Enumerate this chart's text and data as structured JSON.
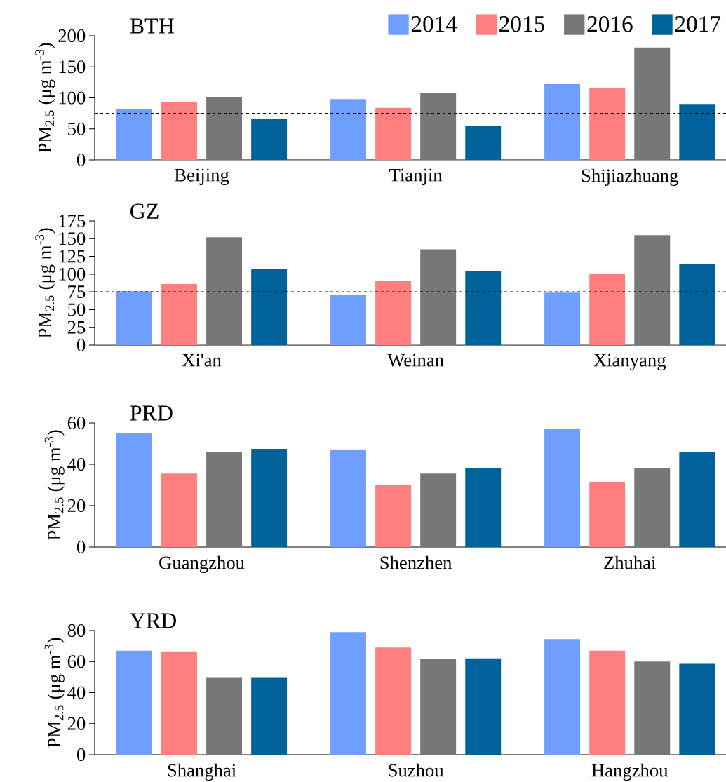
{
  "chart_data": [
    {
      "type": "bar",
      "title": "BTH",
      "ylabel": "PM$_{2.5}$ (μg m$^{-3}$)",
      "categories": [
        "Beijing",
        "Tianjin",
        "Shijiazhuang"
      ],
      "series": [
        {
          "name": "2014",
          "color": "#6f9eff",
          "values": [
            82,
            98,
            122
          ]
        },
        {
          "name": "2015",
          "color": "#ff7f7f",
          "values": [
            93,
            84,
            116
          ]
        },
        {
          "name": "2016",
          "color": "#777777",
          "values": [
            101,
            108,
            181
          ]
        },
        {
          "name": "2017",
          "color": "#00629b",
          "values": [
            66,
            55,
            90
          ]
        }
      ],
      "ylim": [
        0,
        200
      ],
      "yticks": [
        0,
        50,
        100,
        150,
        200
      ],
      "legend": "top right",
      "ref_lines": [
        {
          "axis": "y",
          "value": 75,
          "color": "#000000",
          "line_style": "dashed"
        }
      ]
    },
    {
      "type": "bar",
      "title": "GZ",
      "ylabel": "PM$_{2.5}$ (μg m$^{-3}$)",
      "categories": [
        "Xi'an",
        "Weinan",
        "Xianyang"
      ],
      "series": [
        {
          "color": "#6f9eff",
          "values": [
            76,
            71,
            74
          ]
        },
        {
          "color": "#ff7f7f",
          "values": [
            86,
            91,
            100
          ]
        },
        {
          "color": "#777777",
          "values": [
            152,
            135,
            155
          ]
        },
        {
          "color": "#00629b",
          "values": [
            107,
            104,
            114
          ]
        }
      ],
      "ylim": [
        0,
        175
      ],
      "yticks": [
        0,
        25,
        50,
        75,
        100,
        125,
        150,
        175
      ],
      "ref_lines": [
        {
          "axis": "y",
          "value": 75,
          "color": "#000000",
          "line_style": "dashed"
        }
      ]
    },
    {
      "type": "bar",
      "title": "PRD",
      "ylabel": "PM$_{2.5}$ (μg m$^{-3}$)",
      "categories": [
        "Guangzhou",
        "Shenzhen",
        "Zhuhai"
      ],
      "series": [
        {
          "color": "#6f9eff",
          "values": [
            55,
            47,
            57
          ]
        },
        {
          "color": "#ff7f7f",
          "values": [
            35.5,
            30,
            31.5
          ]
        },
        {
          "color": "#777777",
          "values": [
            46,
            35.5,
            38
          ]
        },
        {
          "color": "#00629b",
          "values": [
            47.5,
            38,
            46
          ]
        }
      ],
      "ylim": [
        0,
        60
      ],
      "yticks": [
        0,
        20,
        40,
        60
      ]
    },
    {
      "type": "bar",
      "title": "YRD",
      "ylabel": "PM$_{2.5}$ (μg m$^{-3}$)",
      "categories": [
        "Shanghai",
        "Suzhou",
        "Hangzhou"
      ],
      "series": [
        {
          "color": "#6f9eff",
          "values": [
            67,
            79,
            74.5
          ]
        },
        {
          "color": "#ff7f7f",
          "values": [
            66.5,
            69,
            67
          ]
        },
        {
          "color": "#777777",
          "values": [
            49.5,
            61.5,
            60
          ]
        },
        {
          "color": "#00629b",
          "values": [
            49.5,
            62,
            58.5
          ]
        }
      ],
      "ylim": [
        0,
        80
      ],
      "yticks": [
        0,
        20,
        40,
        60,
        80
      ]
    }
  ]
}
